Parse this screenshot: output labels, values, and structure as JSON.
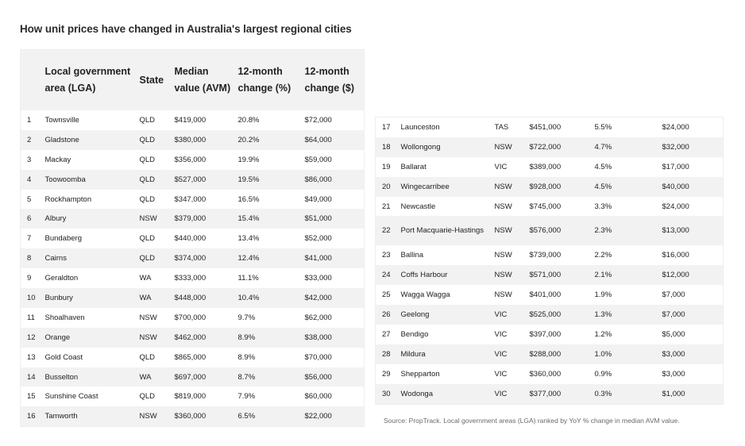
{
  "title": "How unit prices have changed in Australia's largest regional cities",
  "headers": [
    "",
    "Local government area (LGA)",
    "State",
    "Median value (AVM)",
    "12-month change (%)",
    "12-month change ($)"
  ],
  "left_rows": [
    [
      "1",
      "Townsville",
      "QLD",
      "$419,000",
      "20.8%",
      "$72,000"
    ],
    [
      "2",
      "Gladstone",
      "QLD",
      "$380,000",
      "20.2%",
      "$64,000"
    ],
    [
      "3",
      "Mackay",
      "QLD",
      "$356,000",
      "19.9%",
      "$59,000"
    ],
    [
      "4",
      "Toowoomba",
      "QLD",
      "$527,000",
      "19.5%",
      "$86,000"
    ],
    [
      "5",
      "Rockhampton",
      "QLD",
      "$347,000",
      "16.5%",
      "$49,000"
    ],
    [
      "6",
      "Albury",
      "NSW",
      "$379,000",
      "15.4%",
      "$51,000"
    ],
    [
      "7",
      "Bundaberg",
      "QLD",
      "$440,000",
      "13.4%",
      "$52,000"
    ],
    [
      "8",
      "Cairns",
      "QLD",
      "$374,000",
      "12.4%",
      "$41,000"
    ],
    [
      "9",
      "Geraldton",
      "WA",
      "$333,000",
      "11.1%",
      "$33,000"
    ],
    [
      "10",
      "Bunbury",
      "WA",
      "$448,000",
      "10.4%",
      "$42,000"
    ],
    [
      "11",
      "Shoalhaven",
      "NSW",
      "$700,000",
      "9.7%",
      "$62,000"
    ],
    [
      "12",
      "Orange",
      "NSW",
      "$462,000",
      "8.9%",
      "$38,000"
    ],
    [
      "13",
      "Gold Coast",
      "QLD",
      "$865,000",
      "8.9%",
      "$70,000"
    ],
    [
      "14",
      "Busselton",
      "WA",
      "$697,000",
      "8.7%",
      "$56,000"
    ],
    [
      "15",
      "Sunshine Coast",
      "QLD",
      "$819,000",
      "7.9%",
      "$60,000"
    ],
    [
      "16",
      "Tamworth",
      "NSW",
      "$360,000",
      "6.5%",
      "$22,000"
    ]
  ],
  "right_rows": [
    [
      "17",
      "Launceston",
      "TAS",
      "$451,000",
      "5.5%",
      "$24,000"
    ],
    [
      "18",
      "Wollongong",
      "NSW",
      "$722,000",
      "4.7%",
      "$32,000"
    ],
    [
      "19",
      "Ballarat",
      "VIC",
      "$389,000",
      "4.5%",
      "$17,000"
    ],
    [
      "20",
      "Wingecarribee",
      "NSW",
      "$928,000",
      "4.5%",
      "$40,000"
    ],
    [
      "21",
      "Newcastle",
      "NSW",
      "$745,000",
      "3.3%",
      "$24,000"
    ],
    [
      "22",
      "Port Macquarie-Hastings",
      "NSW",
      "$576,000",
      "2.3%",
      "$13,000"
    ],
    [
      "23",
      "Ballina",
      "NSW",
      "$739,000",
      "2.2%",
      "$16,000"
    ],
    [
      "24",
      "Coffs Harbour",
      "NSW",
      "$571,000",
      "2.1%",
      "$12,000"
    ],
    [
      "25",
      "Wagga Wagga",
      "NSW",
      "$401,000",
      "1.9%",
      "$7,000"
    ],
    [
      "26",
      "Geelong",
      "VIC",
      "$525,000",
      "1.3%",
      "$7,000"
    ],
    [
      "27",
      "Bendigo",
      "VIC",
      "$397,000",
      "1.2%",
      "$5,000"
    ],
    [
      "28",
      "Mildura",
      "VIC",
      "$288,000",
      "1.0%",
      "$3,000"
    ],
    [
      "29",
      "Shepparton",
      "VIC",
      "$360,000",
      "0.9%",
      "$3,000"
    ],
    [
      "30",
      "Wodonga",
      "VIC",
      "$377,000",
      "0.3%",
      "$1,000"
    ]
  ],
  "source": "Source: PropTrack. Local government areas (LGA) ranked by YoY % change in median AVM value.",
  "colors": {
    "row_alt": "#f2f2f2",
    "text": "#222222",
    "source": "#6a6a6a"
  }
}
